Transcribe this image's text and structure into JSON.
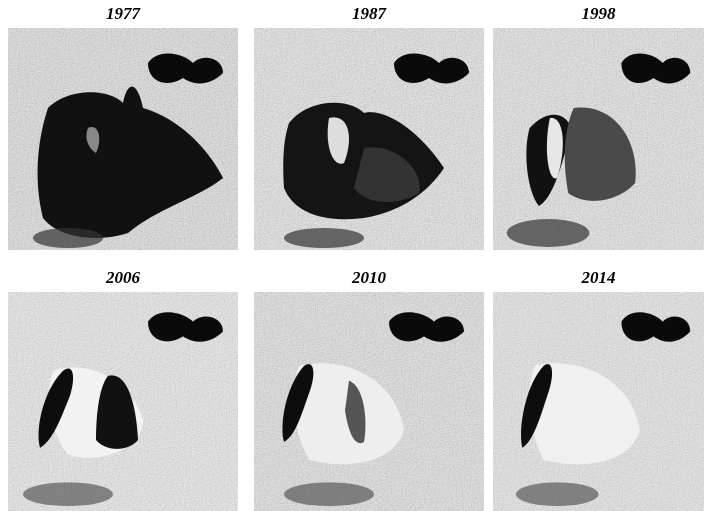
{
  "panels": [
    {
      "label": "1977"
    },
    {
      "label": "1987"
    },
    {
      "label": "1998"
    },
    {
      "label": "2006"
    },
    {
      "label": "2010"
    },
    {
      "label": "2014"
    }
  ]
}
